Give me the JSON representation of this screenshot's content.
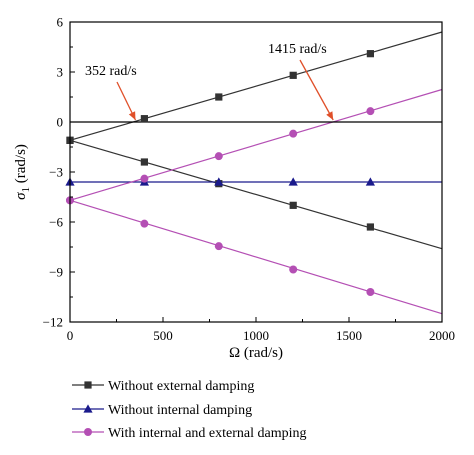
{
  "chart_data": {
    "type": "line",
    "xlabel": "Ω (rad/s)",
    "ylabel_main": "σ",
    "ylabel_sub": "1",
    "ylabel_unit": " (rad/s)",
    "xlim": [
      0,
      2000
    ],
    "ylim": [
      -12,
      6
    ],
    "x_ticks": [
      0,
      500,
      1000,
      1500,
      2000
    ],
    "y_ticks": [
      -12,
      -9,
      -6,
      -3,
      0,
      3,
      6
    ],
    "grid": false,
    "legend_position": "bottom",
    "colors": {
      "black": "#333333",
      "blue": "#1a1a8c",
      "magenta": "#b44fb4",
      "arrow": "#e0502a",
      "zero_line": "#000000"
    },
    "series": [
      {
        "name": "Without external damping",
        "color": "#333333",
        "marker": "square",
        "branches": [
          {
            "x": [
              0,
              400,
              800,
              1200,
              1615
            ],
            "y": [
              -1.1,
              0.2,
              1.5,
              2.8,
              4.1
            ],
            "line_x": [
              0,
              2000
            ],
            "line_y": [
              -1.1,
              5.4
            ]
          },
          {
            "x": [
              0,
              400,
              800,
              1200,
              1615
            ],
            "y": [
              -1.1,
              -2.4,
              -3.7,
              -5.0,
              -6.3
            ],
            "line_x": [
              0,
              2000
            ],
            "line_y": [
              -1.1,
              -7.6
            ]
          }
        ]
      },
      {
        "name": "Without internal damping",
        "color": "#1a1a8c",
        "marker": "triangle",
        "branches": [
          {
            "x": [
              0,
              400,
              800,
              1200,
              1615
            ],
            "y": [
              -3.6,
              -3.6,
              -3.6,
              -3.6,
              -3.6
            ],
            "line_x": [
              0,
              2000
            ],
            "line_y": [
              -3.6,
              -3.6
            ]
          }
        ]
      },
      {
        "name": "With internal and external damping",
        "color": "#b44fb4",
        "marker": "circle",
        "branches": [
          {
            "x": [
              0,
              400,
              800,
              1200,
              1615
            ],
            "y": [
              -4.7,
              -3.4,
              -2.05,
              -0.7,
              0.65
            ],
            "line_x": [
              0,
              2000
            ],
            "line_y": [
              -4.7,
              1.95
            ]
          },
          {
            "x": [
              0,
              400,
              800,
              1200,
              1615
            ],
            "y": [
              -4.7,
              -6.1,
              -7.45,
              -8.85,
              -10.2
            ],
            "line_x": [
              0,
              2000
            ],
            "line_y": [
              -4.7,
              -11.5
            ]
          }
        ]
      }
    ],
    "annotations": [
      {
        "text": "352 rad/s",
        "x": 352,
        "y": 0
      },
      {
        "text": "1415 rad/s",
        "x": 1415,
        "y": 0
      }
    ]
  }
}
